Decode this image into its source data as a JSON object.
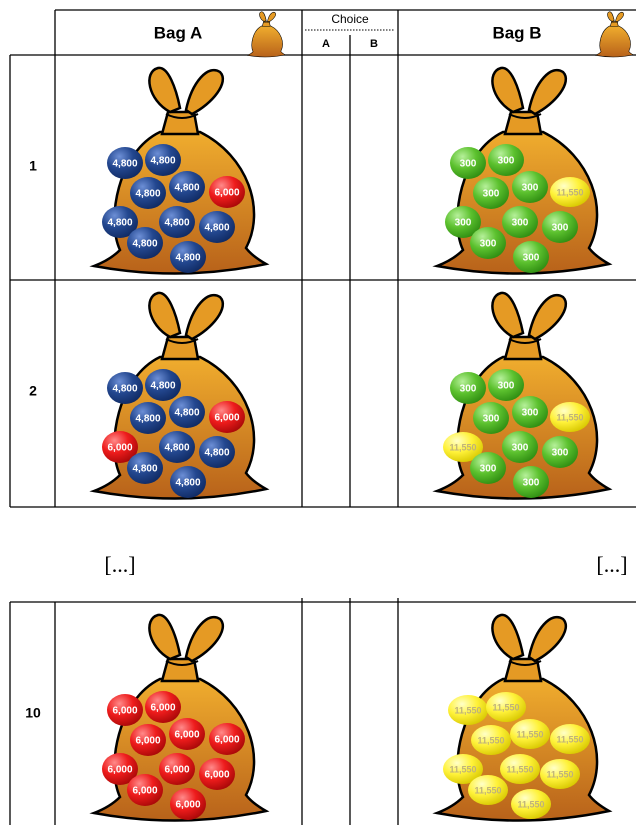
{
  "header": {
    "bag_a": "Bag A",
    "choice": "Choice",
    "choice_a": "A",
    "choice_b": "B",
    "bag_b": "Bag B"
  },
  "rows": [
    {
      "number": "1",
      "bag_a_balls": [
        {
          "label": "4,800",
          "color": "blue"
        },
        {
          "label": "4,800",
          "color": "blue"
        },
        {
          "label": "4,800",
          "color": "blue"
        },
        {
          "label": "4,800",
          "color": "blue"
        },
        {
          "label": "6,000",
          "color": "red"
        },
        {
          "label": "4,800",
          "color": "blue"
        },
        {
          "label": "4,800",
          "color": "blue"
        },
        {
          "label": "4,800",
          "color": "blue"
        },
        {
          "label": "4,800",
          "color": "blue"
        },
        {
          "label": "4,800",
          "color": "blue"
        }
      ],
      "bag_b_balls": [
        {
          "label": "300",
          "color": "green"
        },
        {
          "label": "300",
          "color": "green"
        },
        {
          "label": "300",
          "color": "green"
        },
        {
          "label": "300",
          "color": "green"
        },
        {
          "label": "11,550",
          "color": "yellow"
        },
        {
          "label": "300",
          "color": "green"
        },
        {
          "label": "300",
          "color": "green"
        },
        {
          "label": "300",
          "color": "green"
        },
        {
          "label": "300",
          "color": "green"
        },
        {
          "label": "300",
          "color": "green"
        }
      ]
    },
    {
      "number": "2",
      "bag_a_balls": [
        {
          "label": "4,800",
          "color": "blue"
        },
        {
          "label": "4,800",
          "color": "blue"
        },
        {
          "label": "4,800",
          "color": "blue"
        },
        {
          "label": "4,800",
          "color": "blue"
        },
        {
          "label": "6,000",
          "color": "red"
        },
        {
          "label": "6,000",
          "color": "red"
        },
        {
          "label": "4,800",
          "color": "blue"
        },
        {
          "label": "4,800",
          "color": "blue"
        },
        {
          "label": "4,800",
          "color": "blue"
        },
        {
          "label": "4,800",
          "color": "blue"
        }
      ],
      "bag_b_balls": [
        {
          "label": "300",
          "color": "green"
        },
        {
          "label": "300",
          "color": "green"
        },
        {
          "label": "300",
          "color": "green"
        },
        {
          "label": "300",
          "color": "green"
        },
        {
          "label": "11,550",
          "color": "yellow"
        },
        {
          "label": "11,550",
          "color": "yellow"
        },
        {
          "label": "300",
          "color": "green"
        },
        {
          "label": "300",
          "color": "green"
        },
        {
          "label": "300",
          "color": "green"
        },
        {
          "label": "300",
          "color": "green"
        }
      ]
    },
    {
      "number": "10",
      "bag_a_balls": [
        {
          "label": "6,000",
          "color": "red"
        },
        {
          "label": "6,000",
          "color": "red"
        },
        {
          "label": "6,000",
          "color": "red"
        },
        {
          "label": "6,000",
          "color": "red"
        },
        {
          "label": "6,000",
          "color": "red"
        },
        {
          "label": "6,000",
          "color": "red"
        },
        {
          "label": "6,000",
          "color": "red"
        },
        {
          "label": "6,000",
          "color": "red"
        },
        {
          "label": "6,000",
          "color": "red"
        },
        {
          "label": "6,000",
          "color": "red"
        }
      ],
      "bag_b_balls": [
        {
          "label": "11,550",
          "color": "yellow"
        },
        {
          "label": "11,550",
          "color": "yellow"
        },
        {
          "label": "11,550",
          "color": "yellow"
        },
        {
          "label": "11,550",
          "color": "yellow"
        },
        {
          "label": "11,550",
          "color": "yellow"
        },
        {
          "label": "11,550",
          "color": "yellow"
        },
        {
          "label": "11,550",
          "color": "yellow"
        },
        {
          "label": "11,550",
          "color": "yellow"
        },
        {
          "label": "11,550",
          "color": "yellow"
        },
        {
          "label": "11,550",
          "color": "yellow"
        }
      ]
    }
  ],
  "ellipsis": [
    "[...]",
    "[...]"
  ]
}
